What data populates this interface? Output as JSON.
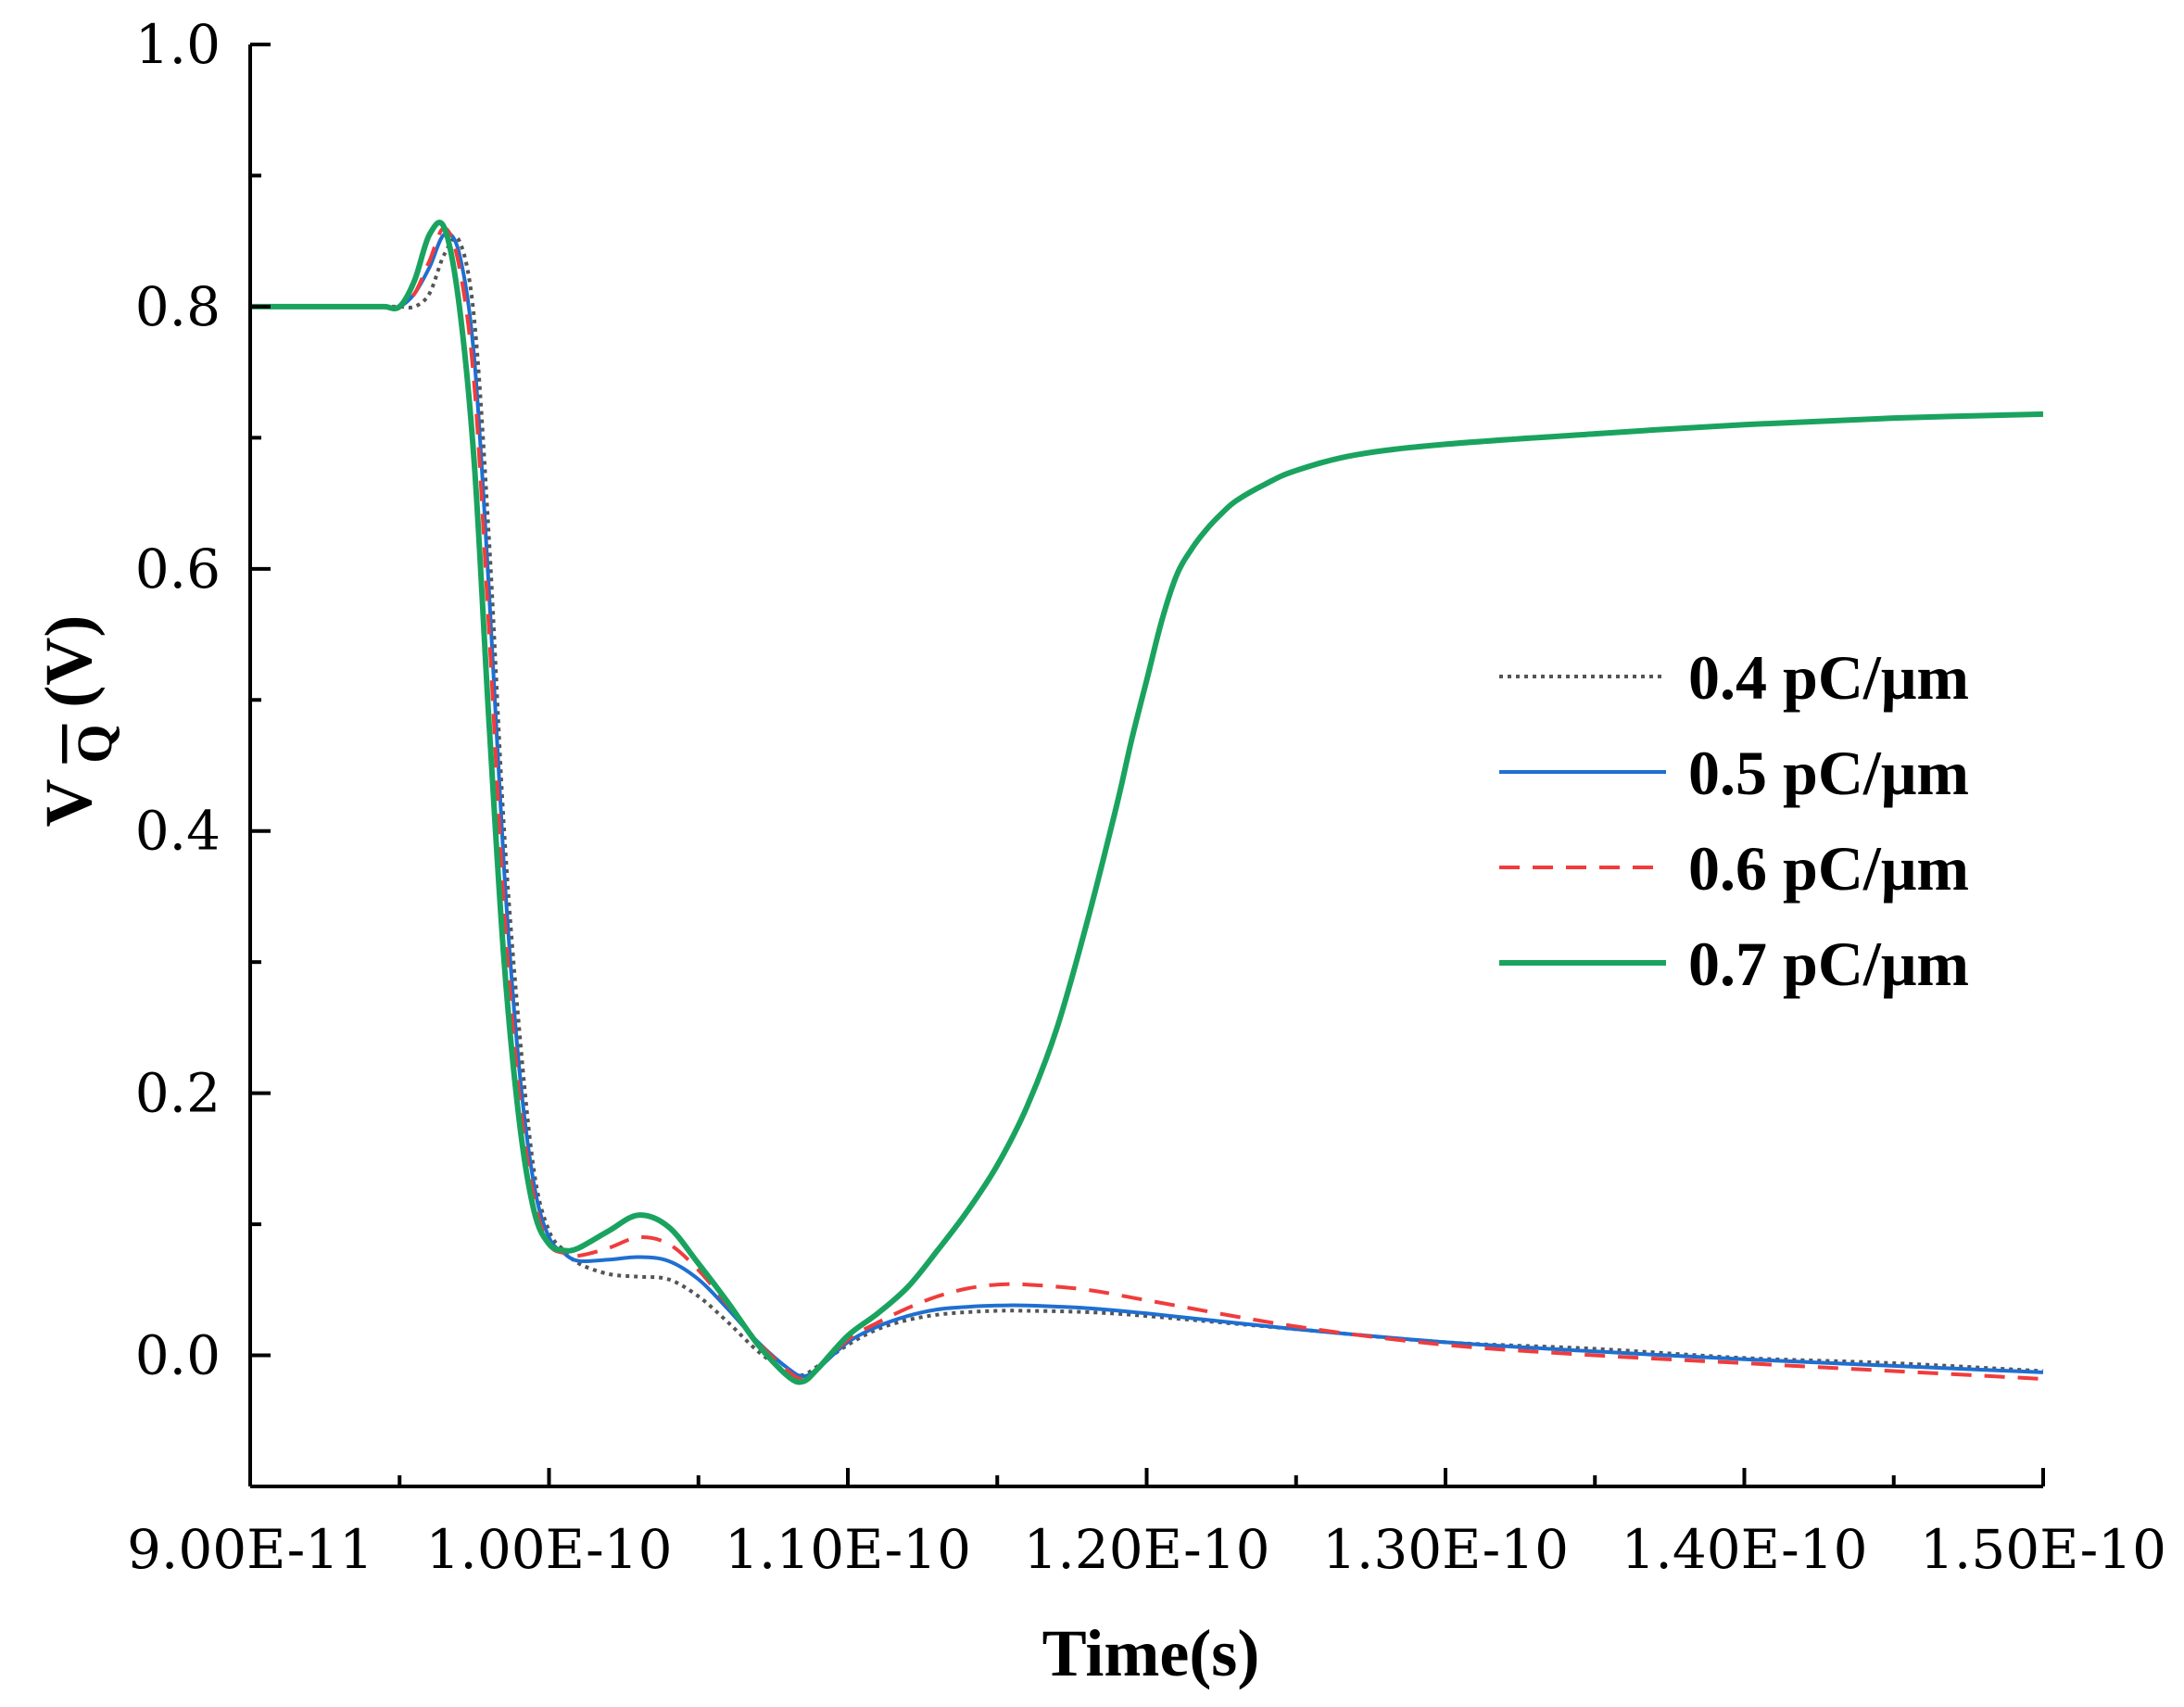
{
  "chart_data": {
    "type": "line",
    "title": "",
    "xlabel": "Time(s)",
    "ylabel_prefix": "V",
    "ylabel_sub": "Q",
    "ylabel_suffix": "(V)",
    "xlim": [
      9e-11,
      1.5e-10
    ],
    "ylim": [
      -0.1,
      1.0
    ],
    "grid": false,
    "legend_position": "right-middle",
    "x_ticks": [
      9e-11,
      1e-10,
      1.1e-10,
      1.2e-10,
      1.3e-10,
      1.4e-10,
      1.5e-10
    ],
    "x_tick_labels": [
      "9.00E-11",
      "1.00E-10",
      "1.10E-10",
      "1.20E-10",
      "1.30E-10",
      "1.40E-10",
      "1.50E-10"
    ],
    "y_ticks": [
      0.0,
      0.2,
      0.4,
      0.6,
      0.8,
      1.0
    ],
    "y_tick_labels": [
      "0.0",
      "0.2",
      "0.4",
      "0.6",
      "0.8",
      "1.0"
    ],
    "series": [
      {
        "name": "0.4 pC/μm",
        "color": "#555555",
        "dash": "dotted",
        "x": [
          90,
          91,
          92,
          93,
          94,
          94.5,
          95,
          95.5,
          96,
          96.5,
          97,
          97.5,
          98,
          98.5,
          99,
          99.5,
          100,
          100.5,
          101,
          102,
          103,
          104,
          105,
          106,
          107,
          108,
          108.5,
          109,
          110,
          111,
          112,
          113,
          114,
          115,
          116,
          118,
          120,
          125,
          130,
          135,
          140,
          145,
          150
        ],
        "values": [
          0.8,
          0.8,
          0.8,
          0.8,
          0.8,
          0.8,
          0.8,
          0.8,
          0.81,
          0.84,
          0.85,
          0.79,
          0.62,
          0.4,
          0.25,
          0.14,
          0.095,
          0.08,
          0.07,
          0.062,
          0.06,
          0.058,
          0.045,
          0.025,
          0.003,
          -0.013,
          -0.015,
          -0.008,
          0.008,
          0.02,
          0.027,
          0.031,
          0.033,
          0.034,
          0.034,
          0.033,
          0.03,
          0.02,
          0.01,
          0.005,
          -0.002,
          -0.006,
          -0.012
        ]
      },
      {
        "name": "0.5 pC/μm",
        "color": "#1f6fd1",
        "dash": "solid",
        "x": [
          90,
          91,
          92,
          93,
          94,
          94.5,
          95,
          95.5,
          96,
          96.5,
          97,
          97.5,
          98,
          98.5,
          99,
          99.5,
          100,
          100.5,
          101,
          102,
          103,
          104,
          105,
          106,
          107,
          108,
          108.5,
          109,
          110,
          111,
          112,
          113,
          114,
          115,
          116,
          118,
          120,
          125,
          130,
          135,
          140,
          145,
          150
        ],
        "values": [
          0.8,
          0.8,
          0.8,
          0.8,
          0.8,
          0.8,
          0.8,
          0.81,
          0.83,
          0.855,
          0.84,
          0.76,
          0.58,
          0.37,
          0.22,
          0.13,
          0.09,
          0.078,
          0.072,
          0.073,
          0.075,
          0.072,
          0.058,
          0.035,
          0.01,
          -0.01,
          -0.016,
          -0.01,
          0.01,
          0.022,
          0.03,
          0.035,
          0.037,
          0.038,
          0.038,
          0.036,
          0.032,
          0.02,
          0.01,
          0.003,
          -0.003,
          -0.008,
          -0.013
        ]
      },
      {
        "name": "0.6 pC/μm",
        "color": "#f03c3c",
        "dash": "dashed",
        "x": [
          90,
          91,
          92,
          93,
          94,
          94.5,
          95,
          95.5,
          96,
          96.5,
          97,
          97.5,
          98,
          98.5,
          99,
          99.5,
          100,
          100.5,
          101,
          102,
          103,
          104,
          105,
          106,
          107,
          108,
          108.5,
          109,
          110,
          111,
          112,
          113,
          114,
          115,
          116,
          118,
          120,
          125,
          130,
          135,
          140,
          145,
          150
        ],
        "values": [
          0.8,
          0.8,
          0.8,
          0.8,
          0.8,
          0.8,
          0.8,
          0.81,
          0.835,
          0.86,
          0.83,
          0.74,
          0.55,
          0.34,
          0.2,
          0.12,
          0.085,
          0.078,
          0.076,
          0.082,
          0.09,
          0.085,
          0.065,
          0.038,
          0.01,
          -0.012,
          -0.018,
          -0.01,
          0.012,
          0.025,
          0.036,
          0.045,
          0.051,
          0.054,
          0.054,
          0.05,
          0.042,
          0.022,
          0.008,
          0.0,
          -0.006,
          -0.012,
          -0.018
        ]
      },
      {
        "name": "0.7 pC/μm",
        "color": "#1aa35f",
        "dash": "solid",
        "x": [
          90,
          91,
          92,
          93,
          94,
          94.5,
          95,
          95.5,
          96,
          96.5,
          97,
          97.5,
          98,
          98.5,
          99,
          99.5,
          100,
          100.5,
          101,
          102,
          103,
          104,
          105,
          106,
          107,
          108,
          108.5,
          109,
          110,
          111,
          112,
          113,
          114,
          115,
          116,
          117,
          118,
          119,
          119.5,
          120,
          120.5,
          121,
          121.5,
          122,
          122.5,
          123,
          124,
          125,
          127,
          130,
          135,
          140,
          145,
          150
        ],
        "values": [
          0.8,
          0.8,
          0.8,
          0.8,
          0.8,
          0.8,
          0.8,
          0.82,
          0.855,
          0.86,
          0.8,
          0.68,
          0.48,
          0.3,
          0.18,
          0.11,
          0.085,
          0.08,
          0.082,
          0.095,
          0.107,
          0.098,
          0.07,
          0.04,
          0.008,
          -0.016,
          -0.02,
          -0.01,
          0.015,
          0.032,
          0.052,
          0.08,
          0.11,
          0.145,
          0.19,
          0.25,
          0.33,
          0.42,
          0.47,
          0.515,
          0.56,
          0.595,
          0.615,
          0.63,
          0.642,
          0.652,
          0.665,
          0.675,
          0.687,
          0.695,
          0.703,
          0.71,
          0.715,
          0.718
        ]
      }
    ]
  }
}
